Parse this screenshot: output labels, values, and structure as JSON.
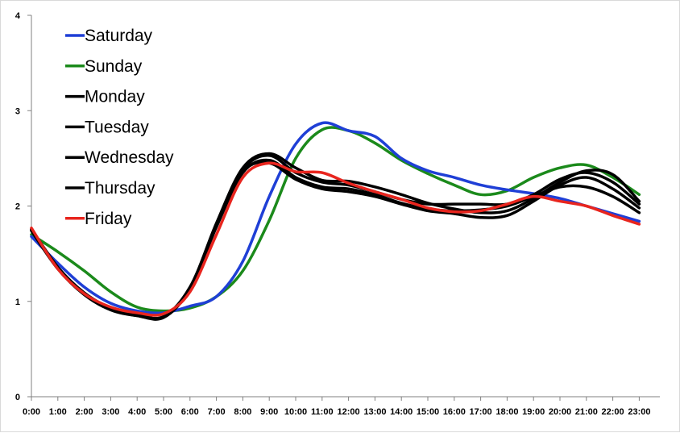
{
  "chart_data": {
    "type": "line",
    "title": "",
    "xlabel": "",
    "ylabel": "",
    "ylim": [
      0,
      4
    ],
    "yticks": [
      0,
      1,
      2,
      3,
      4
    ],
    "grid": false,
    "legend_position": "top-left",
    "categories": [
      "0:00",
      "1:00",
      "2:00",
      "3:00",
      "4:00",
      "5:00",
      "6:00",
      "7:00",
      "8:00",
      "9:00",
      "10:00",
      "11:00",
      "12:00",
      "13:00",
      "14:00",
      "15:00",
      "16:00",
      "17:00",
      "18:00",
      "19:00",
      "20:00",
      "21:00",
      "22:00",
      "23:00"
    ],
    "series": [
      {
        "name": "Saturday",
        "color": "#1f3fd6",
        "values": [
          1.68,
          1.4,
          1.15,
          0.98,
          0.9,
          0.88,
          0.95,
          1.05,
          1.42,
          2.1,
          2.65,
          2.87,
          2.79,
          2.73,
          2.5,
          2.37,
          2.3,
          2.22,
          2.17,
          2.13,
          2.08,
          2.0,
          1.92,
          1.84
        ]
      },
      {
        "name": "Sunday",
        "color": "#1b8a1b",
        "values": [
          1.7,
          1.52,
          1.32,
          1.1,
          0.94,
          0.9,
          0.93,
          1.05,
          1.32,
          1.85,
          2.5,
          2.8,
          2.79,
          2.66,
          2.48,
          2.34,
          2.22,
          2.12,
          2.16,
          2.3,
          2.4,
          2.43,
          2.3,
          2.12
        ]
      },
      {
        "name": "Monday",
        "color": "#000000",
        "values": [
          1.75,
          1.35,
          1.08,
          0.92,
          0.86,
          0.84,
          1.15,
          1.8,
          2.38,
          2.53,
          2.35,
          2.25,
          2.22,
          2.15,
          2.07,
          2.02,
          2.02,
          2.02,
          2.02,
          2.12,
          2.28,
          2.35,
          2.25,
          2.02
        ]
      },
      {
        "name": "Tuesday",
        "color": "#000000",
        "values": [
          1.74,
          1.34,
          1.07,
          0.91,
          0.85,
          0.83,
          1.13,
          1.78,
          2.35,
          2.48,
          2.3,
          2.2,
          2.18,
          2.12,
          2.03,
          1.97,
          1.95,
          1.96,
          2.0,
          2.1,
          2.2,
          2.2,
          2.1,
          1.93
        ]
      },
      {
        "name": "Wednesday",
        "color": "#000000",
        "values": [
          1.76,
          1.36,
          1.09,
          0.93,
          0.86,
          0.84,
          1.14,
          1.82,
          2.4,
          2.55,
          2.4,
          2.27,
          2.26,
          2.2,
          2.12,
          2.03,
          1.97,
          1.93,
          1.95,
          2.08,
          2.25,
          2.37,
          2.33,
          2.05
        ]
      },
      {
        "name": "Thursday",
        "color": "#000000",
        "values": [
          1.75,
          1.35,
          1.08,
          0.92,
          0.85,
          0.84,
          1.14,
          1.79,
          2.36,
          2.45,
          2.28,
          2.18,
          2.15,
          2.1,
          2.02,
          1.95,
          1.92,
          1.88,
          1.9,
          2.05,
          2.22,
          2.3,
          2.18,
          1.98
        ]
      },
      {
        "name": "Friday",
        "color": "#e8251e",
        "values": [
          1.77,
          1.34,
          1.08,
          0.94,
          0.88,
          0.87,
          1.1,
          1.7,
          2.3,
          2.45,
          2.36,
          2.35,
          2.24,
          2.15,
          2.07,
          1.98,
          1.94,
          1.95,
          2.02,
          2.1,
          2.05,
          2.0,
          1.9,
          1.81
        ]
      }
    ]
  }
}
